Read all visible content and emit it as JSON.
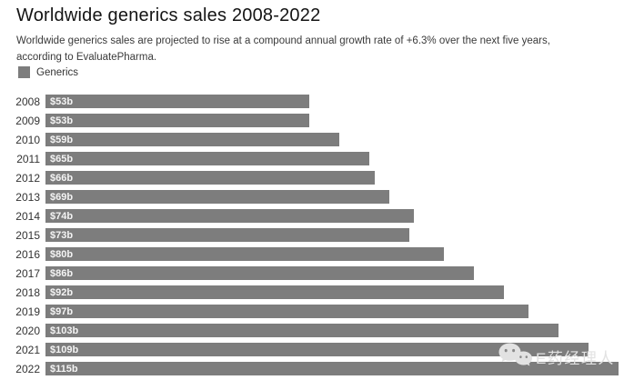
{
  "page": {
    "title": "Worldwide generics sales 2008-2022",
    "subtitle": "Worldwide generics sales are projected to rise at a compound annual growth rate of +6.3% over the next five years, according to EvaluatePharma."
  },
  "legend": {
    "label": "Generics",
    "swatch_color": "#7d7d7d"
  },
  "chart_data": {
    "type": "bar",
    "orientation": "horizontal",
    "title": "Worldwide generics sales 2008-2022",
    "categories": [
      "2008",
      "2009",
      "2010",
      "2011",
      "2012",
      "2013",
      "2014",
      "2015",
      "2016",
      "2017",
      "2018",
      "2019",
      "2020",
      "2021",
      "2022"
    ],
    "values": [
      53,
      53,
      59,
      65,
      66,
      69,
      74,
      73,
      80,
      86,
      92,
      97,
      103,
      109,
      115
    ],
    "labels": [
      "$53b",
      "$53b",
      "$59b",
      "$65b",
      "$66b",
      "$69b",
      "$74b",
      "$73b",
      "$80b",
      "$86b",
      "$92b",
      "$97b",
      "$103b",
      "$109b",
      "$115b"
    ],
    "xlim": [
      0,
      115
    ],
    "bar_color": "#7d7d7d",
    "grid": false,
    "legend_entries": [
      "Generics"
    ],
    "legend_position": "top-left"
  },
  "watermark": {
    "text": "E药经理人",
    "icon": "wechat-icon"
  }
}
